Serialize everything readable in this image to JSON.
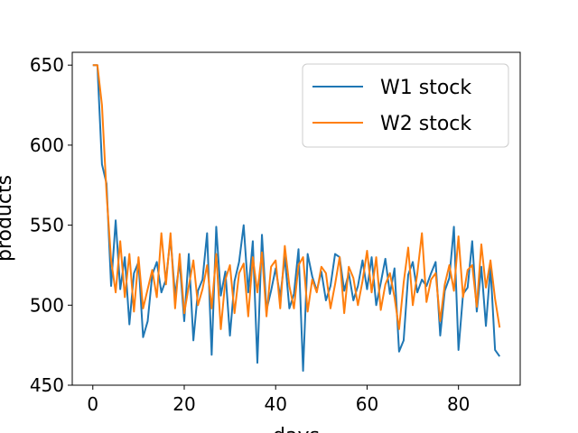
{
  "chart_data": {
    "type": "line",
    "xlabel": "days",
    "ylabel": "products",
    "xlim": [
      -4.5,
      93.5
    ],
    "ylim": [
      450,
      658
    ],
    "xticks": [
      0,
      20,
      40,
      60,
      80
    ],
    "yticks": [
      450,
      500,
      550,
      600,
      650
    ],
    "grid": false,
    "legend_position": "top-right",
    "series": [
      {
        "name": "W1 stock",
        "color": "#1f77b4",
        "x": [
          0,
          1,
          2,
          3,
          4,
          5,
          6,
          7,
          8,
          9,
          10,
          11,
          12,
          13,
          14,
          15,
          16,
          17,
          18,
          19,
          20,
          21,
          22,
          23,
          24,
          25,
          26,
          27,
          28,
          29,
          30,
          31,
          32,
          33,
          34,
          35,
          36,
          37,
          38,
          39,
          40,
          41,
          42,
          43,
          44,
          45,
          46,
          47,
          48,
          49,
          50,
          51,
          52,
          53,
          54,
          55,
          56,
          57,
          58,
          59,
          60,
          61,
          62,
          63,
          64,
          65,
          66,
          67,
          68,
          69,
          70,
          71,
          72,
          73,
          74,
          75,
          76,
          77,
          78,
          79,
          80,
          81,
          82,
          83,
          84,
          85,
          86,
          87,
          88,
          89
        ],
        "values": [
          650,
          650,
          588,
          576,
          512,
          553,
          510,
          530,
          488,
          520,
          527,
          480,
          490,
          519,
          527,
          508,
          516,
          542,
          506,
          527,
          490,
          532,
          478,
          509,
          516,
          545,
          469,
          549,
          506,
          521,
          481,
          515,
          527,
          550,
          508,
          540,
          464,
          544,
          497,
          509,
          523,
          505,
          530,
          498,
          507,
          535,
          459,
          532,
          518,
          509,
          521,
          503,
          512,
          532,
          530,
          509,
          520,
          503,
          512,
          528,
          510,
          530,
          500,
          514,
          529,
          507,
          523,
          471,
          478,
          519,
          527,
          508,
          516,
          512,
          520,
          527,
          481,
          509,
          517,
          549,
          472,
          507,
          511,
          540,
          496,
          524,
          487,
          524,
          472,
          468
        ]
      },
      {
        "name": "W2 stock",
        "color": "#ff7f0e",
        "x": [
          0,
          1,
          2,
          3,
          4,
          5,
          6,
          7,
          8,
          9,
          10,
          11,
          12,
          13,
          14,
          15,
          16,
          17,
          18,
          19,
          20,
          21,
          22,
          23,
          24,
          25,
          26,
          27,
          28,
          29,
          30,
          31,
          32,
          33,
          34,
          35,
          36,
          37,
          38,
          39,
          40,
          41,
          42,
          43,
          44,
          45,
          46,
          47,
          48,
          49,
          50,
          51,
          52,
          53,
          54,
          55,
          56,
          57,
          58,
          59,
          60,
          61,
          62,
          63,
          64,
          65,
          66,
          67,
          68,
          69,
          70,
          71,
          72,
          73,
          74,
          75,
          76,
          77,
          78,
          79,
          80,
          81,
          82,
          83,
          84,
          85,
          86,
          87,
          88,
          89
        ],
        "values": [
          650,
          650,
          625,
          570,
          528,
          508,
          540,
          505,
          532,
          496,
          530,
          498,
          510,
          522,
          505,
          545,
          513,
          545,
          498,
          532,
          495,
          512,
          528,
          500,
          510,
          525,
          498,
          532,
          485,
          516,
          525,
          495,
          520,
          526,
          493,
          530,
          508,
          533,
          493,
          524,
          528,
          498,
          537,
          512,
          498,
          525,
          530,
          496,
          516,
          508,
          524,
          520,
          498,
          513,
          530,
          495,
          524,
          517,
          500,
          515,
          534,
          508,
          530,
          497,
          513,
          520,
          505,
          485,
          514,
          536,
          500,
          520,
          545,
          502,
          516,
          520,
          490,
          513,
          525,
          509,
          543,
          505,
          522,
          525,
          499,
          538,
          511,
          528,
          504,
          486
        ]
      }
    ]
  }
}
